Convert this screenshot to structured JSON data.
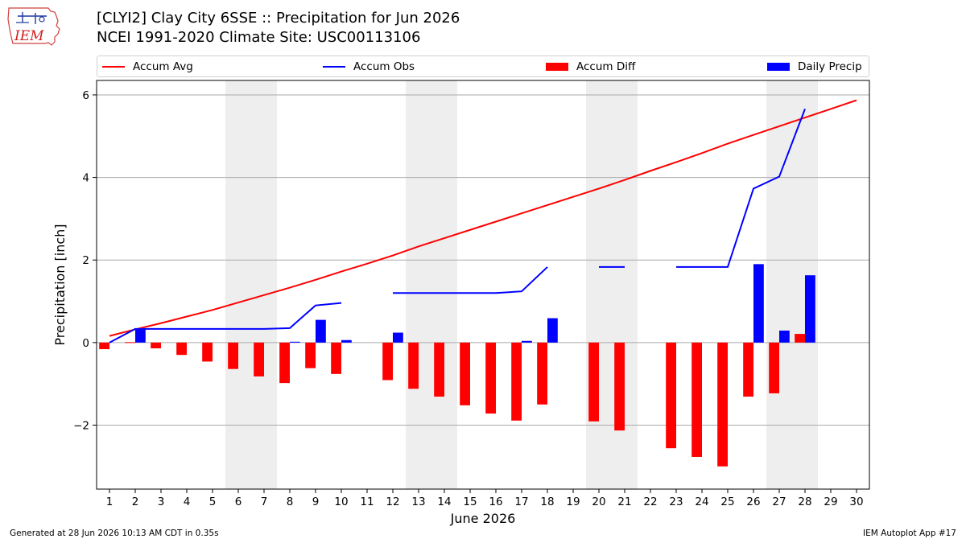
{
  "header": {
    "logo_text": "IEM",
    "title_line1": "[CLYI2] Clay City 6SSE :: Precipitation for Jun 2026",
    "title_line2": "NCEI 1991-2020 Climate Site: USC00113106"
  },
  "legend": {
    "accum_avg": "Accum Avg",
    "accum_obs": "Accum Obs",
    "accum_diff": "Accum Diff",
    "daily_precip": "Daily Precip"
  },
  "colors": {
    "accum_avg": "#ff0000",
    "accum_obs": "#0000ff",
    "accum_diff": "#ff0000",
    "daily_precip": "#0000ff",
    "weekend_shade": "#eeeeee",
    "grid": "#aaaaaa"
  },
  "footer": {
    "left": "Generated at 28 Jun 2026 10:13 AM CDT in 0.35s",
    "right": "IEM Autoplot App #17"
  },
  "chart_data": {
    "type": "bar",
    "xlabel": "June 2026",
    "ylabel": "Precipitation [inch]",
    "xlim": [
      0.5,
      30.5
    ],
    "ylim": [
      -3.55,
      6.35
    ],
    "yticks": [
      -2,
      0,
      2,
      4,
      6
    ],
    "ytick_labels": [
      "−2",
      "0",
      "2",
      "4",
      "6"
    ],
    "xticks": [
      1,
      2,
      3,
      4,
      5,
      6,
      7,
      8,
      9,
      10,
      11,
      12,
      13,
      14,
      15,
      16,
      17,
      18,
      19,
      20,
      21,
      22,
      23,
      24,
      25,
      26,
      27,
      28,
      29,
      30
    ],
    "grid": true,
    "legend_position": "top",
    "shaded_days": [
      [
        6,
        7
      ],
      [
        13,
        14
      ],
      [
        20,
        21
      ],
      [
        27,
        28
      ]
    ],
    "accum_avg": {
      "name": "Accum Avg",
      "x": [
        1,
        2,
        3,
        4,
        5,
        6,
        7,
        8,
        9,
        10,
        11,
        12,
        13,
        14,
        15,
        16,
        17,
        18,
        19,
        20,
        21,
        22,
        23,
        24,
        25,
        26,
        27,
        28,
        29,
        30
      ],
      "y": [
        0.16,
        0.32,
        0.47,
        0.63,
        0.79,
        0.97,
        1.15,
        1.33,
        1.52,
        1.72,
        1.91,
        2.11,
        2.33,
        2.53,
        2.73,
        2.93,
        3.13,
        3.33,
        3.53,
        3.73,
        3.94,
        4.16,
        4.37,
        4.59,
        4.82,
        5.03,
        5.24,
        5.45,
        5.66,
        5.87
      ]
    },
    "accum_obs": {
      "name": "Accum Obs",
      "segments": [
        {
          "x": [
            1,
            2,
            3,
            4,
            5,
            6,
            7,
            8,
            9,
            10
          ],
          "y": [
            0.0,
            0.33,
            0.33,
            0.33,
            0.33,
            0.33,
            0.33,
            0.35,
            0.9,
            0.96
          ]
        },
        {
          "x": [
            12,
            13,
            14,
            15,
            16,
            17,
            18
          ],
          "y": [
            1.2,
            1.2,
            1.2,
            1.2,
            1.2,
            1.24,
            1.83
          ]
        },
        {
          "x": [
            20,
            21
          ],
          "y": [
            1.83,
            1.83
          ]
        },
        {
          "x": [
            23,
            24,
            25,
            26,
            27,
            28
          ],
          "y": [
            1.83,
            1.83,
            1.83,
            3.73,
            4.02,
            5.66
          ]
        }
      ]
    },
    "accum_diff": {
      "name": "Accum Diff",
      "x": [
        1,
        2,
        3,
        4,
        5,
        6,
        7,
        8,
        9,
        10,
        12,
        13,
        14,
        15,
        16,
        17,
        18,
        20,
        21,
        23,
        24,
        25,
        26,
        27,
        28
      ],
      "values": [
        -0.16,
        0.01,
        -0.14,
        -0.3,
        -0.46,
        -0.64,
        -0.82,
        -0.98,
        -0.62,
        -0.76,
        -0.91,
        -1.12,
        -1.31,
        -1.52,
        -1.72,
        -1.89,
        -1.5,
        -1.91,
        -2.13,
        -2.56,
        -2.77,
        -3.0,
        -1.31,
        -1.23,
        0.21
      ]
    },
    "daily_precip": {
      "name": "Daily Precip",
      "x": [
        2,
        8,
        9,
        10,
        12,
        17,
        18,
        26,
        27,
        28
      ],
      "values": [
        0.33,
        0.02,
        0.55,
        0.06,
        0.24,
        0.04,
        0.59,
        1.9,
        0.29,
        1.63
      ]
    }
  }
}
